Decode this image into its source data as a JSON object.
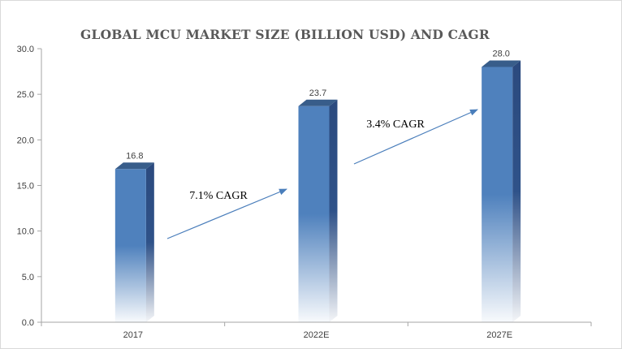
{
  "chart_data": {
    "type": "bar",
    "title": "GLOBAL MCU MARKET SIZE (BILLION USD) AND CAGR",
    "categories": [
      "2017",
      "2022E",
      "2027E"
    ],
    "values": [
      16.8,
      23.7,
      28.0
    ],
    "data_labels": [
      "16.8",
      "23.7",
      "28.0"
    ],
    "y_ticks": [
      "0.0",
      "5.0",
      "10.0",
      "15.0",
      "20.0",
      "25.0",
      "30.0"
    ],
    "ylim": [
      0,
      30
    ],
    "xlabel": "",
    "ylabel": "",
    "grid": false,
    "legend": "none",
    "annotations": [
      {
        "text": "7.1% CAGR",
        "from": "2017",
        "to": "2022E"
      },
      {
        "text": "3.4% CAGR",
        "from": "2022E",
        "to": "2027E"
      }
    ],
    "colors": {
      "bar_front": "#4f81bd",
      "bar_side": "#2b4a7e",
      "bar_top": "#385d8a",
      "arrow": "#4a7ebb",
      "axis": "#a6a6a6"
    }
  }
}
